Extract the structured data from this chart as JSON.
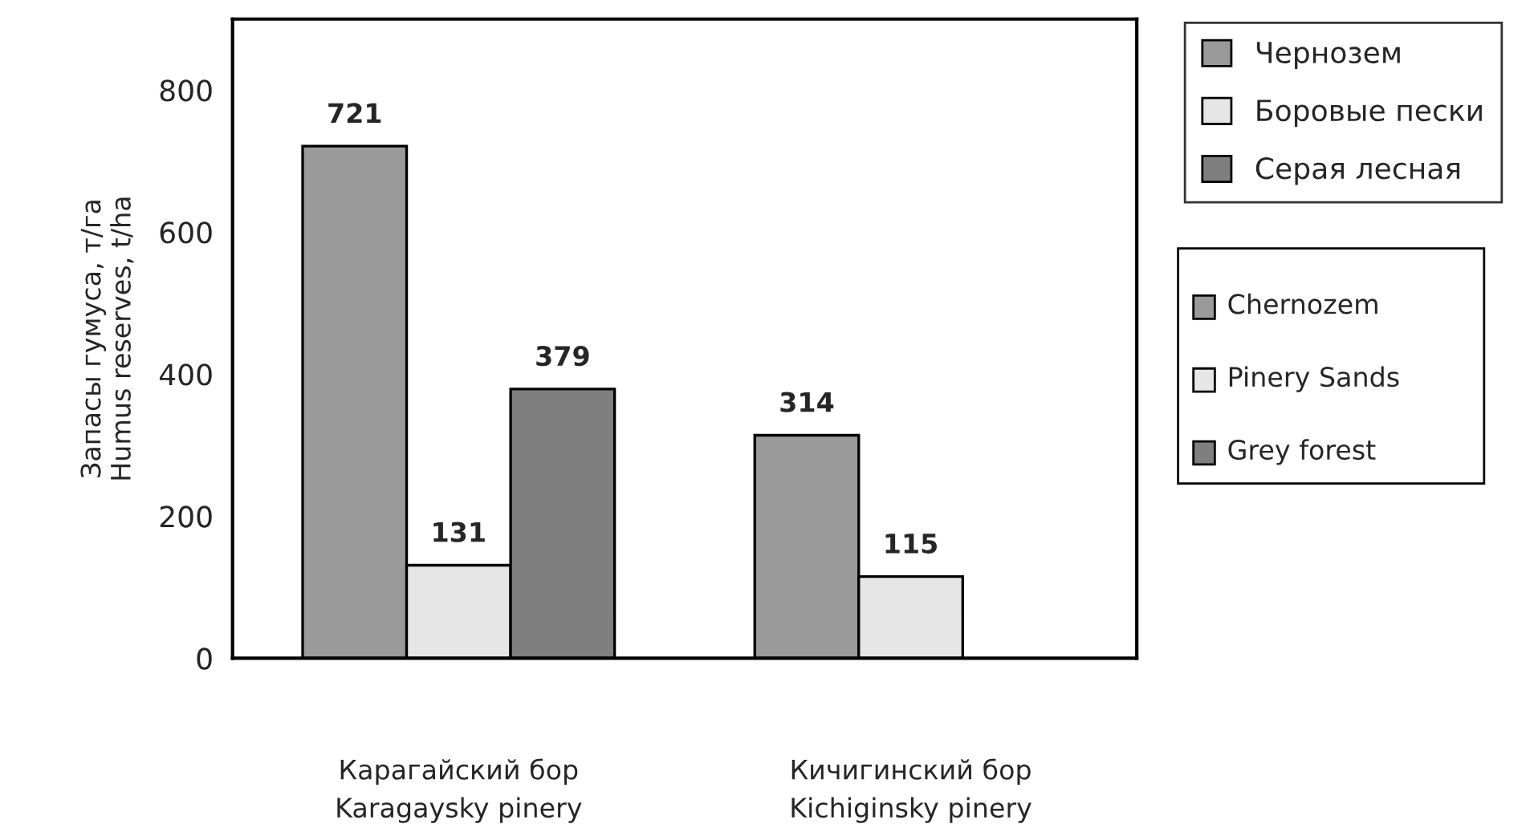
{
  "chart_data": {
    "type": "bar",
    "ylabel": "Запасы гумуса, т/га\nHumus reserves, t/ha",
    "categories": [
      "Карагайский бор\nKaragaysky pinery",
      "Кичигинский бор\nKichiginsky pinery"
    ],
    "series": [
      {
        "name": "Чернозем",
        "color": "#9a9a9a",
        "values": [
          721,
          314
        ]
      },
      {
        "name": "Боровые пески",
        "color": "#e6e6e6",
        "values": [
          131,
          115
        ]
      },
      {
        "name": "Серая лесная",
        "color": "#7f7f7f",
        "values": [
          379,
          null
        ]
      }
    ],
    "annotations": [
      "Chernozem",
      "Pinery Sands",
      "Grey forest"
    ],
    "ylim": [
      0,
      900
    ],
    "yticks": [
      0,
      200,
      400,
      600,
      800
    ],
    "data_labels": true,
    "legend": "right",
    "grid": false
  }
}
